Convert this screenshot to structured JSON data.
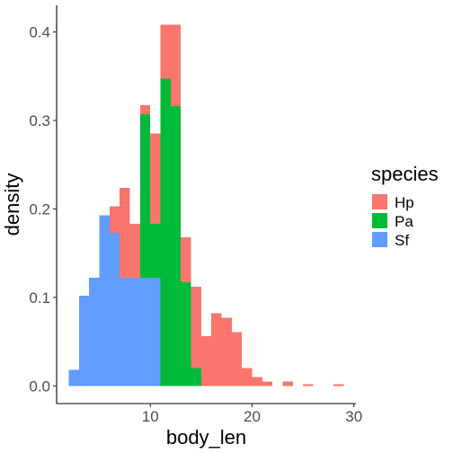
{
  "chart_data": {
    "type": "bar",
    "subtype": "stacked-histogram",
    "xlabel": "body_len",
    "ylabel": "density",
    "xlim": [
      0.8,
      30.2
    ],
    "ylim": [
      -0.02,
      0.43
    ],
    "x_ticks": [
      10,
      20,
      30
    ],
    "y_ticks": [
      0.0,
      0.1,
      0.2,
      0.3,
      0.4
    ],
    "y_tick_labels": [
      "0.0",
      "0.1",
      "0.2",
      "0.3",
      "0.4"
    ],
    "grid": false,
    "legend": {
      "title": "species",
      "position": "right",
      "entries": [
        {
          "label": "Hp",
          "color": "#F8766D"
        },
        {
          "label": "Pa",
          "color": "#00BA38"
        },
        {
          "label": "Sf",
          "color": "#619CFF"
        }
      ]
    },
    "bin_width": 1,
    "bin_starts": [
      2,
      3,
      4,
      5,
      6,
      7,
      8,
      9,
      10,
      11,
      12,
      13,
      14,
      15,
      16,
      17,
      18,
      19,
      20,
      21,
      22,
      23,
      24,
      25,
      26,
      27,
      28,
      29
    ],
    "series": [
      {
        "name": "Sf",
        "color": "#619CFF",
        "values": [
          0.018,
          0.102,
          0.122,
          0.193,
          0.173,
          0.122,
          0.122,
          0.122,
          0.122,
          0,
          0,
          0,
          0,
          0,
          0,
          0,
          0,
          0,
          0,
          0,
          0,
          0,
          0,
          0,
          0,
          0,
          0,
          0
        ]
      },
      {
        "name": "Pa",
        "color": "#00BA38",
        "values": [
          0,
          0,
          0,
          0,
          0,
          0,
          0,
          0.185,
          0.061,
          0.347,
          0.316,
          0.117,
          0.02,
          0,
          0,
          0,
          0,
          0,
          0,
          0,
          0,
          0,
          0,
          0,
          0,
          0,
          0,
          0
        ]
      },
      {
        "name": "Hp",
        "color": "#F8766D",
        "values": [
          0,
          0,
          0,
          0,
          0.03,
          0.102,
          0.061,
          0.01,
          0.102,
          0.061,
          0.092,
          0.051,
          0.092,
          0.056,
          0.082,
          0.077,
          0.061,
          0.02,
          0.01,
          0.005,
          0,
          0.005,
          0,
          0.002,
          0,
          0,
          0.002,
          0
        ]
      }
    ]
  }
}
